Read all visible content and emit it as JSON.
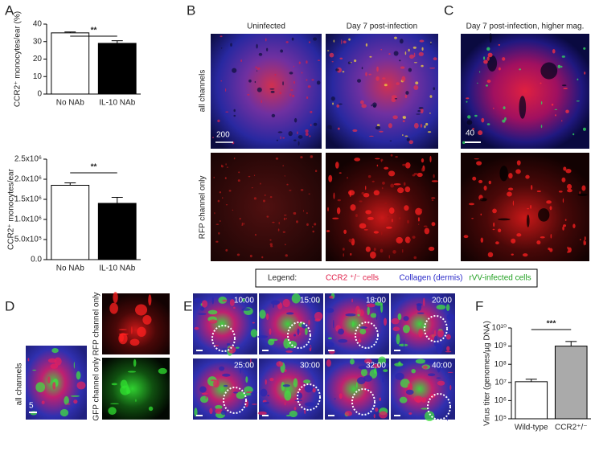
{
  "chart_data": [
    {
      "type": "bar",
      "categories": [
        "No NAb",
        "IL-10 NAb"
      ],
      "values": [
        35,
        29
      ],
      "errors": [
        0.5,
        1.5
      ],
      "colors": [
        "#ffffff",
        "#000000"
      ],
      "ylabel": "CCR2⁺ monocytes/ear (%)",
      "ylim": [
        0,
        40
      ],
      "yticks": [
        0,
        10,
        20,
        30,
        40
      ],
      "significance": "**"
    },
    {
      "type": "bar",
      "categories": [
        "No NAb",
        "IL-10 NAb"
      ],
      "values": [
        1850000,
        1400000
      ],
      "errors": [
        60000,
        150000
      ],
      "colors": [
        "#ffffff",
        "#000000"
      ],
      "ylabel": "CCR2⁺ monocytes/ear",
      "ylim": [
        0,
        2500000
      ],
      "yticks": [
        {
          "value": 0,
          "label": "0.0"
        },
        {
          "value": 500000,
          "label": "5.0x10⁵"
        },
        {
          "value": 1000000,
          "label": "1.0x10⁶"
        },
        {
          "value": 1500000,
          "label": "1.5x10⁶"
        },
        {
          "value": 2000000,
          "label": "2.0x10⁶"
        },
        {
          "value": 2500000,
          "label": "2.5x10⁶"
        }
      ],
      "significance": "**"
    },
    {
      "type": "bar",
      "categories": [
        "Wild-type",
        "CCR2⁺/⁻"
      ],
      "values": [
        11000000,
        1000000000
      ],
      "errors": [
        4000000,
        800000000
      ],
      "colors": [
        "#ffffff",
        "#aaaaaa"
      ],
      "ylabel": "Virus titer (genomes/µg DNA)",
      "log": true,
      "ylim": [
        100000,
        10000000000
      ],
      "yticks": [
        {
          "value": 100000,
          "label": "10⁵"
        },
        {
          "value": 1000000,
          "label": "10⁶"
        },
        {
          "value": 10000000,
          "label": "10⁷"
        },
        {
          "value": 100000000,
          "label": "10⁸"
        },
        {
          "value": 1000000000,
          "label": "10⁹"
        },
        {
          "value": 10000000000,
          "label": "10¹⁰"
        }
      ],
      "significance": "***"
    }
  ],
  "figure": {
    "panel_labels": [
      "A",
      "B",
      "C",
      "D",
      "E",
      "F"
    ],
    "b_columns": [
      "Uninfected",
      "Day 7 post-infection"
    ],
    "b_rows": [
      "all channels",
      "RFP channel only"
    ],
    "b_scale": "200",
    "c_title": "Day 7 post-infection, higher mag.",
    "c_scale": "40",
    "legend": {
      "title": "Legend:",
      "items": [
        "CCR2 ⁺/⁻ cells",
        "Collagen (dermis)",
        "rVV-infected cells"
      ],
      "colors": [
        "#e0204a",
        "#2828c8",
        "#20a020"
      ]
    },
    "d_main": "all channels",
    "d_scale": "5",
    "d_rows": [
      "RFP channel only",
      "GFP channel only"
    ],
    "e_times": [
      "10:00",
      "15:00",
      "18:00",
      "20:00",
      "25:00",
      "30:00",
      "32:00",
      "40:00"
    ]
  }
}
